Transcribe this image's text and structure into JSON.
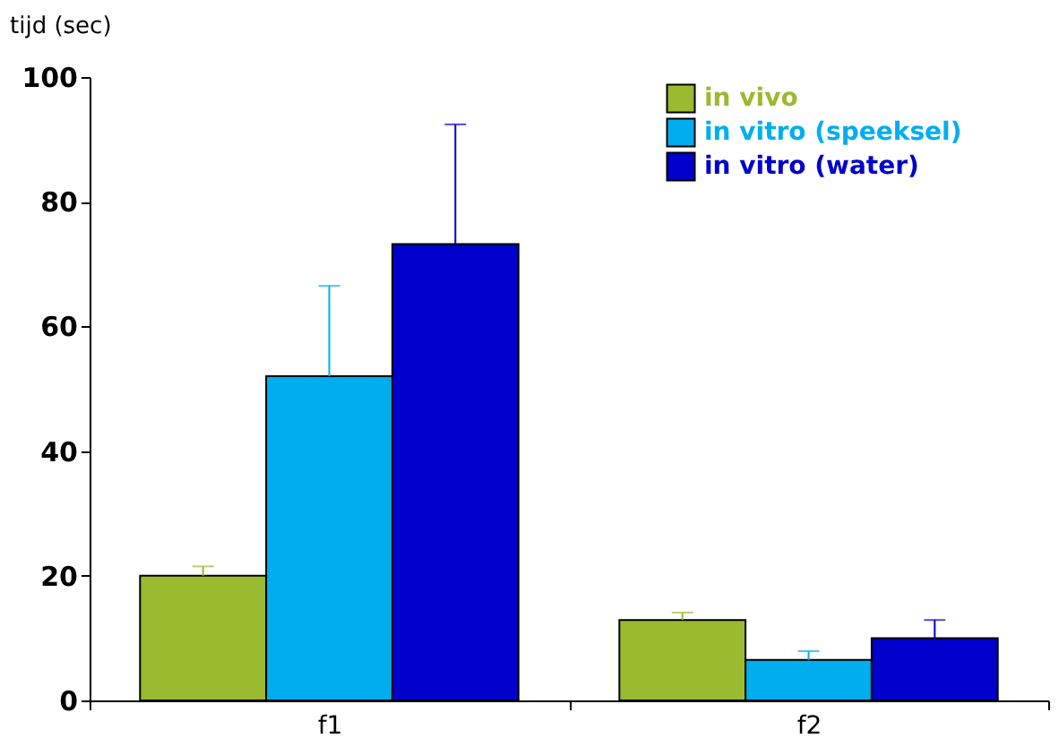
{
  "chart_data": {
    "type": "bar",
    "ylabel": "tijd (sec)",
    "categories": [
      "f1",
      "f2"
    ],
    "series": [
      {
        "name": "in vivo",
        "color": "#9aba2f",
        "values": [
          20,
          12.9
        ],
        "errors": [
          [
            20,
            21.5
          ],
          [
            12.9,
            14.1
          ]
        ]
      },
      {
        "name": "in vitro (speeksel)",
        "color": "#00aeef",
        "values": [
          52,
          6.5
        ],
        "errors": [
          [
            52,
            66.5
          ],
          [
            6.5,
            7.9
          ]
        ]
      },
      {
        "name": "in vitro (water)",
        "color": "#0000cc",
        "values": [
          73.2,
          10
        ],
        "errors": [
          [
            73.2,
            92.4
          ],
          [
            10,
            12.9
          ]
        ]
      }
    ],
    "ylim": [
      0,
      100
    ],
    "yticks": [
      0,
      20,
      40,
      60,
      80,
      100
    ],
    "grid": false,
    "legend": "top right"
  }
}
